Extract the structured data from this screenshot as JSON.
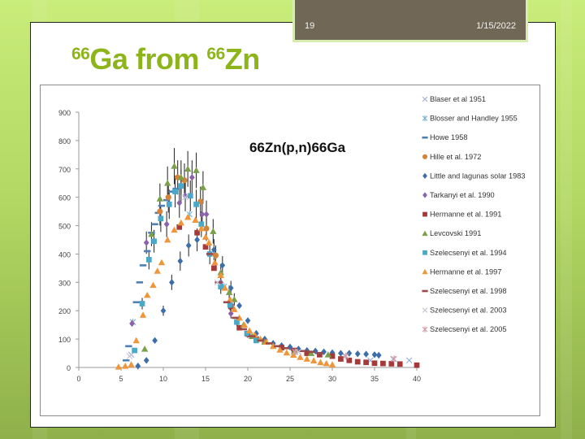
{
  "slide": {
    "number": "19",
    "date": "1/15/2022",
    "title": {
      "sup1": "66",
      "main1": "Ga from ",
      "sup2": "66",
      "main2": "Zn"
    }
  },
  "colors": {
    "title": "#8db51b",
    "header_box": "#716756",
    "background": "#b3d863"
  },
  "chart_data": {
    "type": "scatter",
    "title": "66Zn(p,n)66Ga",
    "xlabel": "",
    "ylabel": "",
    "xlim": [
      0,
      40
    ],
    "ylim": [
      0,
      900
    ],
    "xticks": [
      0,
      5,
      10,
      15,
      20,
      25,
      30,
      35,
      40
    ],
    "yticks": [
      0,
      100,
      200,
      300,
      400,
      500,
      600,
      700,
      800,
      900
    ],
    "grid": false,
    "legend_position": "right",
    "series": [
      {
        "name": "Blaser et al 1951",
        "marker": "x",
        "color": "#9fb0d6",
        "points": [
          [
            6.2,
            45
          ],
          [
            25.5,
            55
          ],
          [
            31.5,
            40
          ],
          [
            34.5,
            25
          ],
          [
            37.2,
            30
          ],
          [
            39.1,
            25
          ]
        ]
      },
      {
        "name": "Blosser and Handley 1955",
        "marker": "asterisk",
        "color": "#7fb6d9",
        "points": [
          [
            6.4,
            160
          ],
          [
            13.1,
            540
          ],
          [
            17.2,
            285
          ]
        ]
      },
      {
        "name": "Howe 1958",
        "marker": "dash",
        "color": "#4f7fb3",
        "points": [
          [
            5.6,
            25
          ],
          [
            5.9,
            75
          ],
          [
            6.8,
            230
          ],
          [
            7.2,
            300
          ],
          [
            7.6,
            360
          ],
          [
            8.1,
            410
          ],
          [
            8.6,
            475
          ],
          [
            9.0,
            505
          ],
          [
            9.4,
            545
          ],
          [
            9.8,
            570
          ],
          [
            10.4,
            590
          ],
          [
            11.0,
            620
          ],
          [
            11.5,
            630
          ]
        ]
      },
      {
        "name": "Hille et al. 1972",
        "marker": "circle",
        "color": "#d4843a",
        "points": [
          [
            9.6,
            550
          ],
          [
            10.6,
            600
          ],
          [
            11.7,
            670
          ],
          [
            12.5,
            660
          ],
          [
            14.4,
            585
          ],
          [
            15.1,
            490
          ],
          [
            16.2,
            395
          ]
        ]
      },
      {
        "name": "Little and lagunas solar 1983",
        "marker": "diamond",
        "color": "#3d6ea8",
        "points": [
          [
            7.0,
            5
          ],
          [
            8.0,
            25
          ],
          [
            9.0,
            95
          ],
          [
            10.0,
            200
          ],
          [
            11.0,
            300
          ],
          [
            12.0,
            375
          ],
          [
            13.0,
            430
          ],
          [
            14.0,
            450
          ],
          [
            16.0,
            415
          ],
          [
            17.0,
            360
          ],
          [
            18.0,
            280
          ],
          [
            19.0,
            218
          ],
          [
            20.0,
            165
          ],
          [
            21.0,
            120
          ],
          [
            22.0,
            100
          ],
          [
            23.0,
            85
          ],
          [
            24.0,
            77
          ],
          [
            25.0,
            72
          ],
          [
            26.0,
            65
          ],
          [
            27.0,
            60
          ],
          [
            28.0,
            58
          ],
          [
            29.0,
            55
          ],
          [
            30.0,
            52
          ],
          [
            31.0,
            50
          ],
          [
            32.0,
            50
          ],
          [
            33.0,
            48
          ],
          [
            34.0,
            47
          ],
          [
            35.0,
            45
          ],
          [
            35.5,
            43
          ]
        ]
      },
      {
        "name": "Tarkanyi et al. 1990",
        "marker": "diamond",
        "color": "#8a63a8",
        "points": [
          [
            6.3,
            155
          ],
          [
            8.0,
            440
          ],
          [
            10.4,
            505
          ],
          [
            11.9,
            580
          ],
          [
            12.6,
            605
          ],
          [
            13.4,
            670
          ],
          [
            14.6,
            540
          ],
          [
            15.1,
            540
          ],
          [
            16.8,
            300
          ],
          [
            18.0,
            190
          ],
          [
            20.0,
            115
          ]
        ]
      },
      {
        "name": "Hermanne et al. 1991",
        "marker": "square",
        "color": "#a63a3a",
        "points": [
          [
            11.9,
            495
          ],
          [
            14.0,
            475
          ],
          [
            15.0,
            425
          ],
          [
            16.0,
            350
          ],
          [
            18.0,
            215
          ],
          [
            19.0,
            140
          ],
          [
            20.0,
            118
          ],
          [
            21.0,
            100
          ],
          [
            22.0,
            90
          ],
          [
            24.0,
            70
          ],
          [
            25.5,
            60
          ],
          [
            27.0,
            50
          ],
          [
            28.5,
            45
          ],
          [
            30.0,
            40
          ],
          [
            31.0,
            30
          ],
          [
            32.0,
            25
          ],
          [
            33.0,
            20
          ],
          [
            34.0,
            18
          ],
          [
            35.0,
            15
          ],
          [
            36.0,
            14
          ],
          [
            37.0,
            13
          ],
          [
            38.0,
            12
          ],
          [
            40.0,
            8
          ]
        ]
      },
      {
        "name": "Levcovski 1991",
        "marker": "triangle",
        "color": "#7aa04a",
        "points": [
          [
            7.8,
            65
          ],
          [
            8.6,
            470
          ],
          [
            9.6,
            595
          ],
          [
            10.5,
            650
          ],
          [
            11.3,
            710
          ],
          [
            12.1,
            670
          ],
          [
            12.9,
            700
          ],
          [
            13.9,
            695
          ],
          [
            14.7,
            635
          ],
          [
            15.9,
            480
          ],
          [
            16.8,
            335
          ],
          [
            17.8,
            265
          ],
          [
            18.4,
            240
          ],
          [
            19.5,
            150
          ],
          [
            20.5,
            110
          ],
          [
            22.0,
            90
          ],
          [
            25.5,
            55
          ],
          [
            27.5,
            50
          ],
          [
            29.5,
            45
          ]
        ]
      },
      {
        "name": "Szelecsenyi et al. 1994",
        "marker": "square",
        "color": "#4aa8c8",
        "points": [
          [
            6.6,
            60
          ],
          [
            7.5,
            225
          ],
          [
            8.3,
            380
          ],
          [
            8.9,
            445
          ],
          [
            9.7,
            525
          ],
          [
            10.7,
            575
          ],
          [
            11.4,
            620
          ],
          [
            12.1,
            640
          ],
          [
            13.2,
            605
          ],
          [
            13.9,
            575
          ],
          [
            14.5,
            505
          ],
          [
            15.5,
            400
          ],
          [
            16.8,
            285
          ],
          [
            17.9,
            220
          ],
          [
            18.7,
            160
          ],
          [
            19.9,
            120
          ],
          [
            21.0,
            95
          ]
        ]
      },
      {
        "name": "Hermanne et al. 1997",
        "marker": "triangle",
        "color": "#f0963a",
        "points": [
          [
            4.7,
            2
          ],
          [
            5.5,
            5
          ],
          [
            6.2,
            10
          ],
          [
            6.8,
            95
          ],
          [
            7.6,
            185
          ],
          [
            8.1,
            255
          ],
          [
            8.8,
            290
          ],
          [
            9.3,
            340
          ],
          [
            9.8,
            370
          ],
          [
            10.5,
            450
          ],
          [
            11.3,
            485
          ],
          [
            12.1,
            510
          ],
          [
            12.9,
            530
          ],
          [
            13.8,
            520
          ],
          [
            14.5,
            490
          ],
          [
            15.0,
            460
          ],
          [
            15.4,
            440
          ],
          [
            16.1,
            370
          ],
          [
            16.8,
            325
          ],
          [
            17.3,
            280
          ],
          [
            17.9,
            240
          ],
          [
            18.4,
            205
          ],
          [
            19.0,
            175
          ],
          [
            19.6,
            150
          ],
          [
            20.2,
            130
          ],
          [
            20.8,
            115
          ],
          [
            21.5,
            100
          ],
          [
            22.2,
            90
          ],
          [
            23.0,
            75
          ],
          [
            23.8,
            62
          ],
          [
            24.6,
            52
          ],
          [
            25.4,
            44
          ],
          [
            26.2,
            36
          ],
          [
            27.0,
            30
          ],
          [
            27.8,
            24
          ],
          [
            28.6,
            18
          ],
          [
            29.3,
            14
          ],
          [
            30.0,
            10
          ]
        ]
      },
      {
        "name": "Szelecsenyi et al. 1998",
        "marker": "dash",
        "color": "#9a4a4a",
        "points": [
          [
            15.5,
            400
          ],
          [
            16.5,
            300
          ],
          [
            17.5,
            230
          ],
          [
            18.5,
            175
          ],
          [
            19.5,
            135
          ],
          [
            20.5,
            110
          ],
          [
            21.5,
            95
          ],
          [
            22.5,
            85
          ],
          [
            23.5,
            75
          ],
          [
            24.5,
            68
          ],
          [
            25.5,
            62
          ],
          [
            26.5,
            58
          ],
          [
            27.5,
            55
          ],
          [
            28.5,
            50
          ]
        ]
      },
      {
        "name": "Szelecsenyi et al. 2003",
        "marker": "x",
        "color": "#c8c8d8",
        "points": [
          [
            6.0,
            40
          ],
          [
            12.6,
            600
          ],
          [
            16.4,
            300
          ],
          [
            26.0,
            55
          ]
        ]
      },
      {
        "name": "Szelecsenyi et al. 2005",
        "marker": "asterisk",
        "color": "#d4a0a8",
        "points": [
          [
            25.6,
            55
          ],
          [
            31.6,
            40
          ],
          [
            37.3,
            30
          ]
        ]
      }
    ]
  }
}
